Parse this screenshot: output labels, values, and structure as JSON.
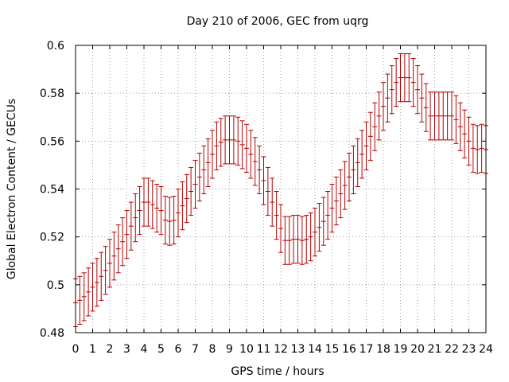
{
  "chart_data": {
    "type": "scatter",
    "title": "Day 210 of 2006, GEC from uqrg",
    "xlabel": "GPS time / hours",
    "ylabel": "Global Electron Content / GECUs",
    "xlim": [
      0,
      24
    ],
    "ylim": [
      0.48,
      0.6
    ],
    "grid": true,
    "error_bars": true,
    "x_ticks": [
      "0",
      "1",
      "2",
      "3",
      "4",
      "5",
      "6",
      "7",
      "8",
      "9",
      "10",
      "11",
      "12",
      "13",
      "14",
      "15",
      "16",
      "17",
      "18",
      "19",
      "20",
      "21",
      "22",
      "23",
      "24"
    ],
    "y_ticks": [
      "0.48",
      "0.5",
      "0.52",
      "0.54",
      "0.56",
      "0.58",
      "0.6"
    ],
    "y_tick_values": [
      0.48,
      0.5,
      0.52,
      0.54,
      0.56,
      0.58,
      0.6
    ],
    "color": "#b30000",
    "series": [
      {
        "x": [
          0.0,
          0.25,
          0.5,
          0.75,
          1.0,
          1.25,
          1.5,
          1.75,
          2.0,
          2.25,
          2.5,
          2.75,
          3.0,
          3.25,
          3.5,
          3.75,
          4.0,
          4.25,
          4.5,
          4.75,
          5.0,
          5.25,
          5.5,
          5.75,
          6.0,
          6.25,
          6.5,
          6.75,
          7.0,
          7.25,
          7.5,
          7.75,
          8.0,
          8.25,
          8.5,
          8.75,
          9.0,
          9.25,
          9.5,
          9.75,
          10.0,
          10.25,
          10.5,
          10.75,
          11.0,
          11.25,
          11.5,
          11.75,
          12.0,
          12.25,
          12.5,
          12.75,
          13.0,
          13.25,
          13.5,
          13.75,
          14.0,
          14.25,
          14.5,
          14.75,
          15.0,
          15.25,
          15.5,
          15.75,
          16.0,
          16.25,
          16.5,
          16.75,
          17.0,
          17.25,
          17.5,
          17.75,
          18.0,
          18.25,
          18.5,
          18.75,
          19.0,
          19.25,
          19.5,
          19.75,
          20.0,
          20.25,
          20.5,
          20.75,
          21.0,
          21.25,
          21.5,
          21.75,
          22.0,
          22.25,
          22.5,
          22.75,
          23.0,
          23.25,
          23.5,
          23.75,
          24.0
        ],
        "y": [
          0.4925,
          0.4935,
          0.495,
          0.497,
          0.499,
          0.501,
          0.5035,
          0.506,
          0.509,
          0.512,
          0.515,
          0.518,
          0.521,
          0.5245,
          0.528,
          0.531,
          0.5345,
          0.5345,
          0.5335,
          0.532,
          0.531,
          0.527,
          0.5265,
          0.527,
          0.53,
          0.533,
          0.536,
          0.539,
          0.542,
          0.545,
          0.548,
          0.551,
          0.5545,
          0.558,
          0.5595,
          0.5605,
          0.5605,
          0.5605,
          0.56,
          0.5585,
          0.557,
          0.5545,
          0.5515,
          0.548,
          0.5435,
          0.539,
          0.5345,
          0.529,
          0.5235,
          0.5185,
          0.5185,
          0.519,
          0.519,
          0.5185,
          0.519,
          0.52,
          0.522,
          0.524,
          0.5265,
          0.529,
          0.532,
          0.535,
          0.538,
          0.5415,
          0.545,
          0.548,
          0.551,
          0.5545,
          0.558,
          0.562,
          0.566,
          0.5705,
          0.5745,
          0.578,
          0.5815,
          0.5845,
          0.5865,
          0.5865,
          0.5865,
          0.5845,
          0.5815,
          0.578,
          0.574,
          0.5705,
          0.5705,
          0.5705,
          0.5705,
          0.5705,
          0.5705,
          0.569,
          0.566,
          0.563,
          0.56,
          0.557,
          0.5565,
          0.557,
          0.5565
        ],
        "err": [
          0.01,
          0.01,
          0.01,
          0.01,
          0.01,
          0.01,
          0.01,
          0.01,
          0.01,
          0.01,
          0.01,
          0.01,
          0.01,
          0.01,
          0.01,
          0.01,
          0.01,
          0.01,
          0.01,
          0.01,
          0.01,
          0.01,
          0.01,
          0.01,
          0.01,
          0.01,
          0.01,
          0.01,
          0.01,
          0.01,
          0.01,
          0.01,
          0.01,
          0.01,
          0.01,
          0.01,
          0.01,
          0.01,
          0.01,
          0.01,
          0.01,
          0.01,
          0.01,
          0.01,
          0.01,
          0.01,
          0.01,
          0.01,
          0.01,
          0.01,
          0.01,
          0.01,
          0.01,
          0.01,
          0.01,
          0.01,
          0.01,
          0.01,
          0.01,
          0.01,
          0.01,
          0.01,
          0.01,
          0.01,
          0.01,
          0.01,
          0.01,
          0.01,
          0.01,
          0.01,
          0.01,
          0.01,
          0.01,
          0.01,
          0.01,
          0.01,
          0.01,
          0.01,
          0.01,
          0.01,
          0.01,
          0.01,
          0.01,
          0.01,
          0.01,
          0.01,
          0.01,
          0.01,
          0.01,
          0.01,
          0.01,
          0.01,
          0.01,
          0.01,
          0.01,
          0.01,
          0.01
        ]
      }
    ]
  }
}
